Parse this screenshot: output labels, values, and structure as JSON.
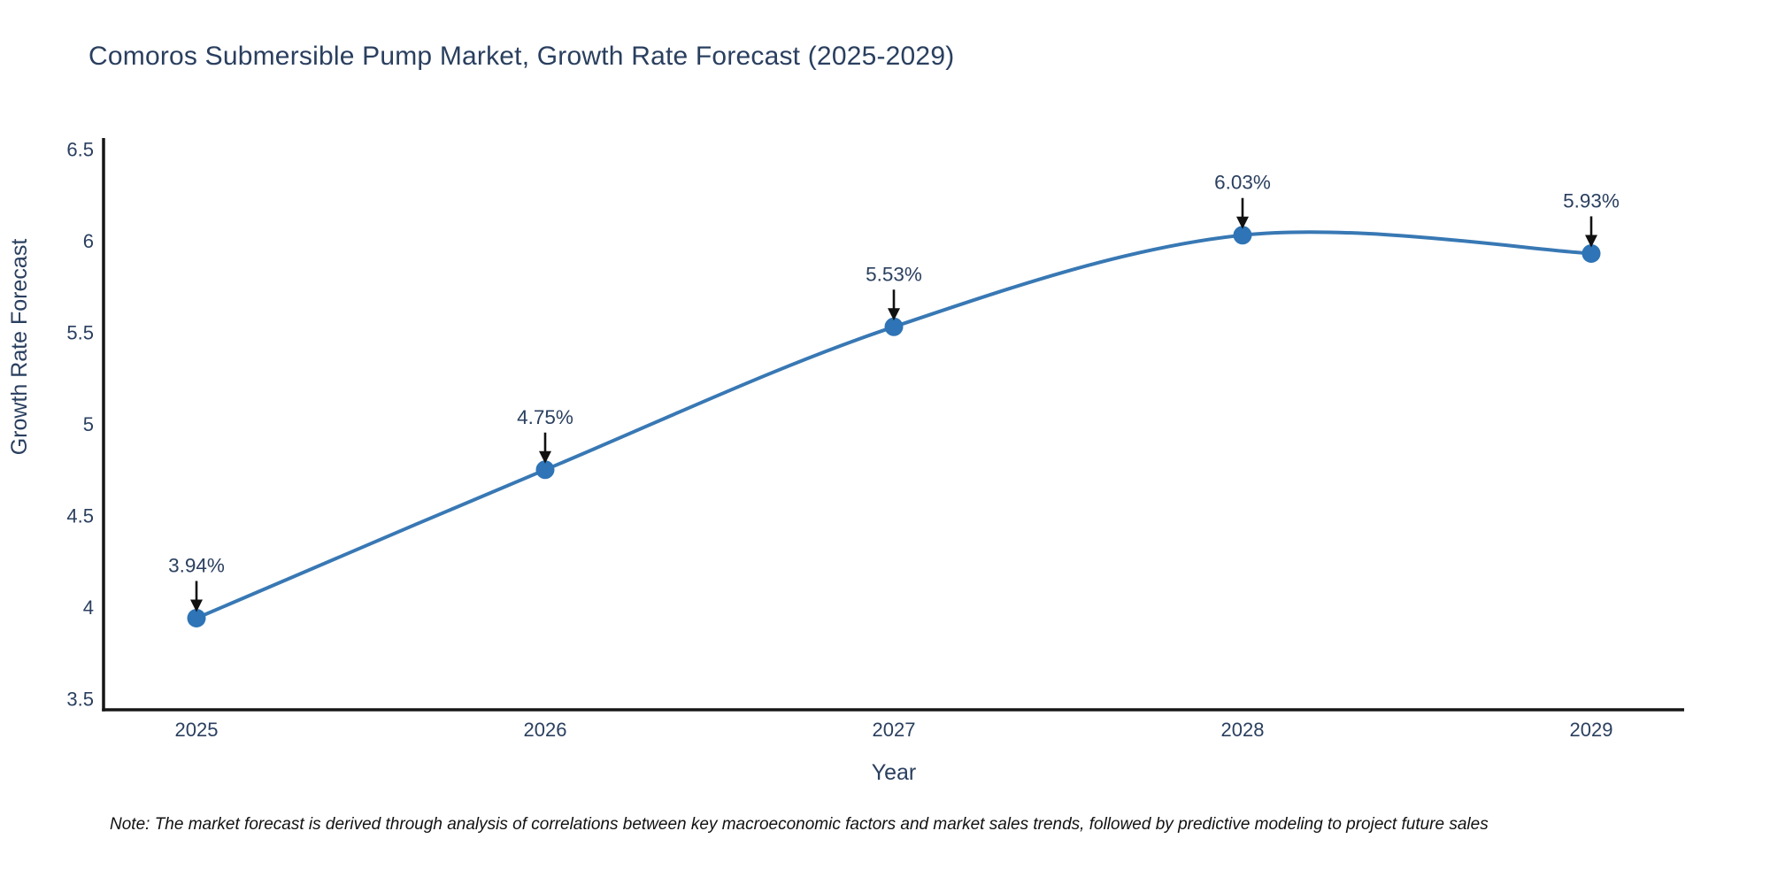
{
  "title": "Comoros Submersible Pump Market, Growth Rate Forecast (2025-2029)",
  "note": "Note: The market forecast is derived through analysis of correlations between key macroeconomic factors and market sales trends, followed by predictive modeling to project future sales",
  "colors": {
    "title_text": "#2a3f5f",
    "tick_text": "#2a3f5f",
    "axis_title_text": "#2a3f5f",
    "point_label_text": "#2a3f5f",
    "note_text": "#111111",
    "line": "#3878b4",
    "marker": "#2e74b6",
    "axis_line": "#161616",
    "arrow": "#111111",
    "background": "#ffffff"
  },
  "chart_data": {
    "type": "line",
    "line_shape": "spline",
    "title": "Comoros Submersible Pump Market, Growth Rate Forecast (2025-2029)",
    "xlabel": "Year",
    "ylabel": "Growth Rate Forecast",
    "x": [
      2025,
      2026,
      2027,
      2028,
      2029
    ],
    "x_tick_labels": [
      "2025",
      "2026",
      "2027",
      "2028",
      "2029"
    ],
    "series": [
      {
        "name": "Growth Rate Forecast",
        "values": [
          3.94,
          4.75,
          5.53,
          6.03,
          5.93
        ]
      }
    ],
    "point_labels": [
      "3.94%",
      "4.75%",
      "5.53%",
      "6.03%",
      "5.93%"
    ],
    "yticks": [
      3.5,
      4,
      4.5,
      5,
      5.5,
      6,
      6.5
    ],
    "y_tick_labels": [
      "3.5",
      "4",
      "4.5",
      "5",
      "5.5",
      "6",
      "6.5"
    ],
    "ylim": [
      3.44,
      6.56
    ],
    "grid": false,
    "legend": false,
    "annotations": "value labels with downward arrows above each data point"
  }
}
